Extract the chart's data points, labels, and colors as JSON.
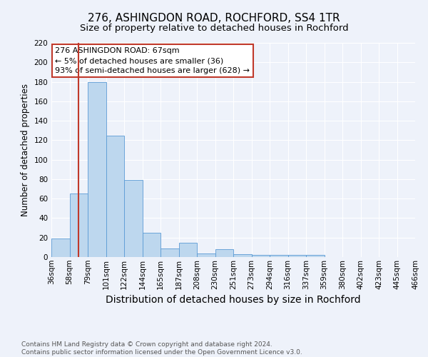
{
  "title": "276, ASHINGDON ROAD, ROCHFORD, SS4 1TR",
  "subtitle": "Size of property relative to detached houses in Rochford",
  "xlabel": "Distribution of detached houses by size in Rochford",
  "ylabel": "Number of detached properties",
  "bar_values": [
    19,
    65,
    180,
    125,
    79,
    25,
    9,
    15,
    4,
    8,
    3,
    2,
    2,
    2,
    2,
    0,
    0,
    0,
    0,
    0
  ],
  "bin_labels": [
    "36sqm",
    "58sqm",
    "79sqm",
    "101sqm",
    "122sqm",
    "144sqm",
    "165sqm",
    "187sqm",
    "208sqm",
    "230sqm",
    "251sqm",
    "273sqm",
    "294sqm",
    "316sqm",
    "337sqm",
    "359sqm",
    "380sqm",
    "402sqm",
    "423sqm",
    "445sqm",
    "466sqm"
  ],
  "bar_color": "#BDD7EE",
  "bar_edge_color": "#5B9BD5",
  "vline_color": "#C0392B",
  "vline_x_data": 1.0,
  "annotation_text": "276 ASHINGDON ROAD: 67sqm\n← 5% of detached houses are smaller (36)\n93% of semi-detached houses are larger (628) →",
  "annotation_box_color": "white",
  "annotation_box_edge_color": "#C0392B",
  "ylim": [
    0,
    220
  ],
  "yticks": [
    0,
    20,
    40,
    60,
    80,
    100,
    120,
    140,
    160,
    180,
    200,
    220
  ],
  "bg_color": "#EEF2FA",
  "grid_color": "white",
  "footer_text": "Contains HM Land Registry data © Crown copyright and database right 2024.\nContains public sector information licensed under the Open Government Licence v3.0.",
  "title_fontsize": 11,
  "subtitle_fontsize": 9.5,
  "xlabel_fontsize": 10,
  "ylabel_fontsize": 8.5,
  "tick_fontsize": 7.5,
  "annotation_fontsize": 8,
  "footer_fontsize": 6.5
}
